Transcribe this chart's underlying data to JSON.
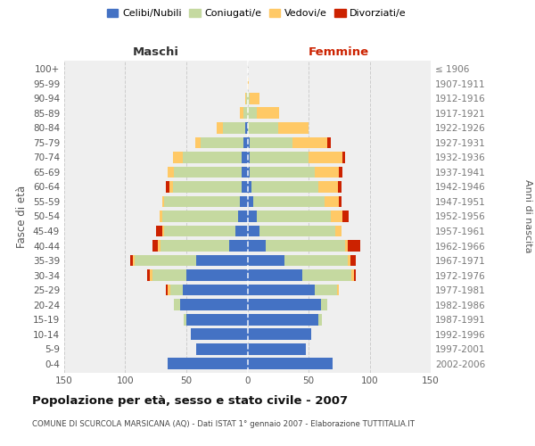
{
  "age_groups": [
    "0-4",
    "5-9",
    "10-14",
    "15-19",
    "20-24",
    "25-29",
    "30-34",
    "35-39",
    "40-44",
    "45-49",
    "50-54",
    "55-59",
    "60-64",
    "65-69",
    "70-74",
    "75-79",
    "80-84",
    "85-89",
    "90-94",
    "95-99",
    "100+"
  ],
  "birth_years": [
    "2002-2006",
    "1997-2001",
    "1992-1996",
    "1987-1991",
    "1982-1986",
    "1977-1981",
    "1972-1976",
    "1967-1971",
    "1962-1966",
    "1957-1961",
    "1952-1956",
    "1947-1951",
    "1942-1946",
    "1937-1941",
    "1932-1936",
    "1927-1931",
    "1922-1926",
    "1917-1921",
    "1912-1916",
    "1907-1911",
    "≤ 1906"
  ],
  "maschi": {
    "celibi": [
      65,
      42,
      46,
      50,
      55,
      53,
      50,
      42,
      15,
      10,
      8,
      6,
      5,
      5,
      5,
      3,
      2,
      0,
      0,
      0,
      0
    ],
    "coniugati": [
      0,
      0,
      0,
      2,
      5,
      10,
      28,
      50,
      56,
      58,
      62,
      62,
      56,
      55,
      48,
      35,
      18,
      3,
      1,
      0,
      0
    ],
    "vedovi": [
      0,
      0,
      0,
      0,
      0,
      2,
      2,
      2,
      2,
      2,
      2,
      2,
      3,
      5,
      8,
      5,
      5,
      3,
      1,
      0,
      0
    ],
    "divorziati": [
      0,
      0,
      0,
      0,
      0,
      2,
      2,
      2,
      5,
      5,
      0,
      0,
      3,
      0,
      0,
      0,
      0,
      0,
      0,
      0,
      0
    ]
  },
  "femmine": {
    "nubili": [
      70,
      48,
      52,
      58,
      60,
      55,
      45,
      30,
      15,
      10,
      8,
      5,
      3,
      2,
      2,
      2,
      0,
      0,
      0,
      0,
      0
    ],
    "coniugate": [
      0,
      0,
      0,
      3,
      5,
      18,
      40,
      52,
      65,
      62,
      60,
      58,
      55,
      53,
      48,
      35,
      25,
      8,
      2,
      0,
      0
    ],
    "vedove": [
      0,
      0,
      0,
      0,
      0,
      2,
      2,
      2,
      2,
      5,
      10,
      12,
      16,
      20,
      28,
      28,
      25,
      18,
      8,
      1,
      0
    ],
    "divorziate": [
      0,
      0,
      0,
      0,
      0,
      0,
      2,
      5,
      10,
      0,
      5,
      2,
      3,
      3,
      2,
      3,
      0,
      0,
      0,
      0,
      0
    ]
  },
  "colors": {
    "celibi_nubili": "#4472c4",
    "coniugati": "#c5d9a0",
    "vedovi": "#ffc966",
    "divorziati": "#cc2200"
  },
  "title": "Popolazione per età, sesso e stato civile - 2007",
  "subtitle": "COMUNE DI SCURCOLA MARSICANA (AQ) - Dati ISTAT 1° gennaio 2007 - Elaborazione TUTTITALIA.IT",
  "maschi_label": "Maschi",
  "femmine_label": "Femmine",
  "ylabel_left": "Fasce di età",
  "ylabel_right": "Anni di nascita",
  "legend_labels": [
    "Celibi/Nubili",
    "Coniugati/e",
    "Vedovi/e",
    "Divorziati/e"
  ],
  "xlim": 150,
  "bg_color": "#efefef",
  "grid_color": "#cccccc"
}
